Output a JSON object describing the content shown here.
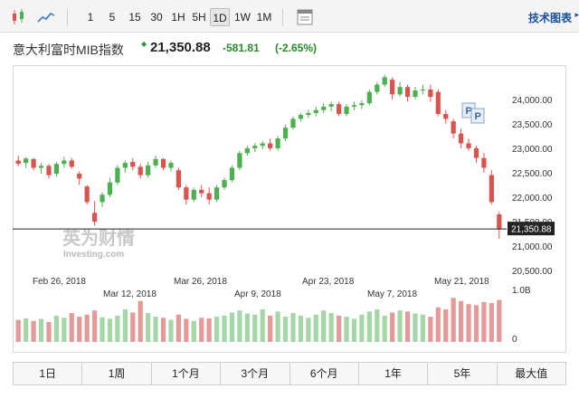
{
  "toolbar": {
    "chart_types": [
      "candlestick-icon",
      "area-chart-icon"
    ],
    "intervals": [
      "1",
      "5",
      "15",
      "30",
      "1H",
      "5H",
      "1D",
      "1W",
      "1M"
    ],
    "active_interval": "1D",
    "settings_icon": "chart-settings-icon",
    "tech_chart_label": "技术图表"
  },
  "header": {
    "name": "意大利富时MIB指数",
    "price": "21,350.88",
    "change": "-581.81",
    "change_pct": "(-2.65%)",
    "change_color": "#2a8a2a"
  },
  "watermark": {
    "cn": "英为财情",
    "en": "Investing.com"
  },
  "range_buttons": [
    "1日",
    "1周",
    "1个月",
    "3个月",
    "6个月",
    "1年",
    "5年",
    "最大值"
  ],
  "chart_data": {
    "type": "candlestick",
    "up_color": "#4caf50",
    "down_color": "#d9534f",
    "y_ticks": [
      "24,000.00",
      "23,500.00",
      "23,000.00",
      "22,500.00",
      "22,000.00",
      "21,500.00",
      "21,000.00",
      "20,500.00"
    ],
    "y_tick_values": [
      24000,
      23500,
      23000,
      22500,
      22000,
      21500,
      21000,
      20500
    ],
    "ylim": [
      20300,
      24550
    ],
    "last_value": 21350.88,
    "last_label": "21,350.88",
    "volume_ticks": [
      "1.0B",
      "0"
    ],
    "x_labels_top": [
      "Feb 26, 2018",
      "Mar 26, 2018",
      "Apr 23, 2018",
      "May 21, 2018"
    ],
    "x_labels_bottom": [
      "Mar 12, 2018",
      "Apr 9, 2018",
      "May 7, 2018"
    ],
    "event_markers": [
      "P",
      "P"
    ],
    "candles": [
      {
        "o": 22750,
        "h": 22850,
        "l": 22630,
        "c": 22680
      },
      {
        "o": 22700,
        "h": 22820,
        "l": 22600,
        "c": 22790
      },
      {
        "o": 22780,
        "h": 22800,
        "l": 22550,
        "c": 22600
      },
      {
        "o": 22600,
        "h": 22700,
        "l": 22480,
        "c": 22640
      },
      {
        "o": 22640,
        "h": 22680,
        "l": 22380,
        "c": 22450
      },
      {
        "o": 22480,
        "h": 22720,
        "l": 22420,
        "c": 22680
      },
      {
        "o": 22680,
        "h": 22820,
        "l": 22600,
        "c": 22750
      },
      {
        "o": 22750,
        "h": 22800,
        "l": 22580,
        "c": 22620
      },
      {
        "o": 22480,
        "h": 22530,
        "l": 22250,
        "c": 22380
      },
      {
        "o": 22220,
        "h": 22250,
        "l": 21850,
        "c": 21900
      },
      {
        "o": 21680,
        "h": 21920,
        "l": 21420,
        "c": 21500
      },
      {
        "o": 21900,
        "h": 22100,
        "l": 21800,
        "c": 22050
      },
      {
        "o": 22050,
        "h": 22400,
        "l": 22000,
        "c": 22300
      },
      {
        "o": 22300,
        "h": 22650,
        "l": 22250,
        "c": 22600
      },
      {
        "o": 22600,
        "h": 22750,
        "l": 22500,
        "c": 22700
      },
      {
        "o": 22720,
        "h": 22800,
        "l": 22550,
        "c": 22620
      },
      {
        "o": 22620,
        "h": 22680,
        "l": 22380,
        "c": 22450
      },
      {
        "o": 22450,
        "h": 22720,
        "l": 22400,
        "c": 22650
      },
      {
        "o": 22650,
        "h": 22850,
        "l": 22600,
        "c": 22780
      },
      {
        "o": 22780,
        "h": 22800,
        "l": 22550,
        "c": 22600
      },
      {
        "o": 22600,
        "h": 22750,
        "l": 22520,
        "c": 22700
      },
      {
        "o": 22550,
        "h": 22600,
        "l": 22150,
        "c": 22200
      },
      {
        "o": 22200,
        "h": 22250,
        "l": 21850,
        "c": 21950
      },
      {
        "o": 21950,
        "h": 22200,
        "l": 21900,
        "c": 22150
      },
      {
        "o": 22150,
        "h": 22250,
        "l": 22000,
        "c": 22080
      },
      {
        "o": 22080,
        "h": 22200,
        "l": 21850,
        "c": 21950
      },
      {
        "o": 21950,
        "h": 22250,
        "l": 21900,
        "c": 22200
      },
      {
        "o": 22200,
        "h": 22400,
        "l": 22150,
        "c": 22350
      },
      {
        "o": 22350,
        "h": 22650,
        "l": 22300,
        "c": 22600
      },
      {
        "o": 22600,
        "h": 22950,
        "l": 22550,
        "c": 22900
      },
      {
        "o": 22900,
        "h": 23050,
        "l": 22850,
        "c": 23000
      },
      {
        "o": 23000,
        "h": 23100,
        "l": 22920,
        "c": 23050
      },
      {
        "o": 23050,
        "h": 23150,
        "l": 22980,
        "c": 23100
      },
      {
        "o": 23100,
        "h": 23200,
        "l": 22950,
        "c": 23000
      },
      {
        "o": 23000,
        "h": 23250,
        "l": 22950,
        "c": 23200
      },
      {
        "o": 23200,
        "h": 23480,
        "l": 23150,
        "c": 23420
      },
      {
        "o": 23420,
        "h": 23650,
        "l": 23380,
        "c": 23600
      },
      {
        "o": 23600,
        "h": 23720,
        "l": 23550,
        "c": 23680
      },
      {
        "o": 23680,
        "h": 23780,
        "l": 23620,
        "c": 23720
      },
      {
        "o": 23720,
        "h": 23850,
        "l": 23650,
        "c": 23780
      },
      {
        "o": 23780,
        "h": 23920,
        "l": 23720,
        "c": 23850
      },
      {
        "o": 23850,
        "h": 23950,
        "l": 23750,
        "c": 23900
      },
      {
        "o": 23900,
        "h": 23950,
        "l": 23650,
        "c": 23700
      },
      {
        "o": 23700,
        "h": 23900,
        "l": 23650,
        "c": 23850
      },
      {
        "o": 23850,
        "h": 23950,
        "l": 23780,
        "c": 23880
      },
      {
        "o": 23880,
        "h": 23980,
        "l": 23800,
        "c": 23920
      },
      {
        "o": 23920,
        "h": 24200,
        "l": 23880,
        "c": 24150
      },
      {
        "o": 24150,
        "h": 24350,
        "l": 24100,
        "c": 24300
      },
      {
        "o": 24300,
        "h": 24500,
        "l": 24250,
        "c": 24450
      },
      {
        "o": 24400,
        "h": 24450,
        "l": 24000,
        "c": 24100
      },
      {
        "o": 24100,
        "h": 24350,
        "l": 24050,
        "c": 24250
      },
      {
        "o": 24250,
        "h": 24300,
        "l": 23950,
        "c": 24050
      },
      {
        "o": 24050,
        "h": 24250,
        "l": 24000,
        "c": 24180
      },
      {
        "o": 24180,
        "h": 24300,
        "l": 24100,
        "c": 24200
      },
      {
        "o": 24200,
        "h": 24300,
        "l": 23950,
        "c": 24050
      },
      {
        "o": 24150,
        "h": 24200,
        "l": 23650,
        "c": 23700
      },
      {
        "o": 23700,
        "h": 23780,
        "l": 23500,
        "c": 23600
      },
      {
        "o": 23550,
        "h": 23600,
        "l": 23200,
        "c": 23300
      },
      {
        "o": 23300,
        "h": 23400,
        "l": 23000,
        "c": 23100
      },
      {
        "o": 23100,
        "h": 23200,
        "l": 22950,
        "c": 23000
      },
      {
        "o": 23000,
        "h": 23050,
        "l": 22700,
        "c": 22800
      },
      {
        "o": 22800,
        "h": 22900,
        "l": 22500,
        "c": 22600
      },
      {
        "o": 22450,
        "h": 22550,
        "l": 21850,
        "c": 21900
      },
      {
        "o": 21650,
        "h": 21700,
        "l": 21150,
        "c": 21350.88
      }
    ],
    "volumes": [
      0.42,
      0.45,
      0.4,
      0.44,
      0.38,
      0.5,
      0.46,
      0.55,
      0.48,
      0.52,
      0.6,
      0.47,
      0.44,
      0.5,
      0.62,
      0.56,
      0.78,
      0.55,
      0.48,
      0.46,
      0.42,
      0.52,
      0.44,
      0.4,
      0.46,
      0.45,
      0.48,
      0.5,
      0.56,
      0.6,
      0.54,
      0.52,
      0.62,
      0.5,
      0.58,
      0.48,
      0.55,
      0.5,
      0.46,
      0.52,
      0.6,
      0.55,
      0.5,
      0.48,
      0.44,
      0.52,
      0.58,
      0.62,
      0.5,
      0.56,
      0.6,
      0.58,
      0.54,
      0.52,
      0.48,
      0.66,
      0.62,
      0.84,
      0.78,
      0.72,
      0.7,
      0.76,
      0.74,
      0.8
    ]
  }
}
